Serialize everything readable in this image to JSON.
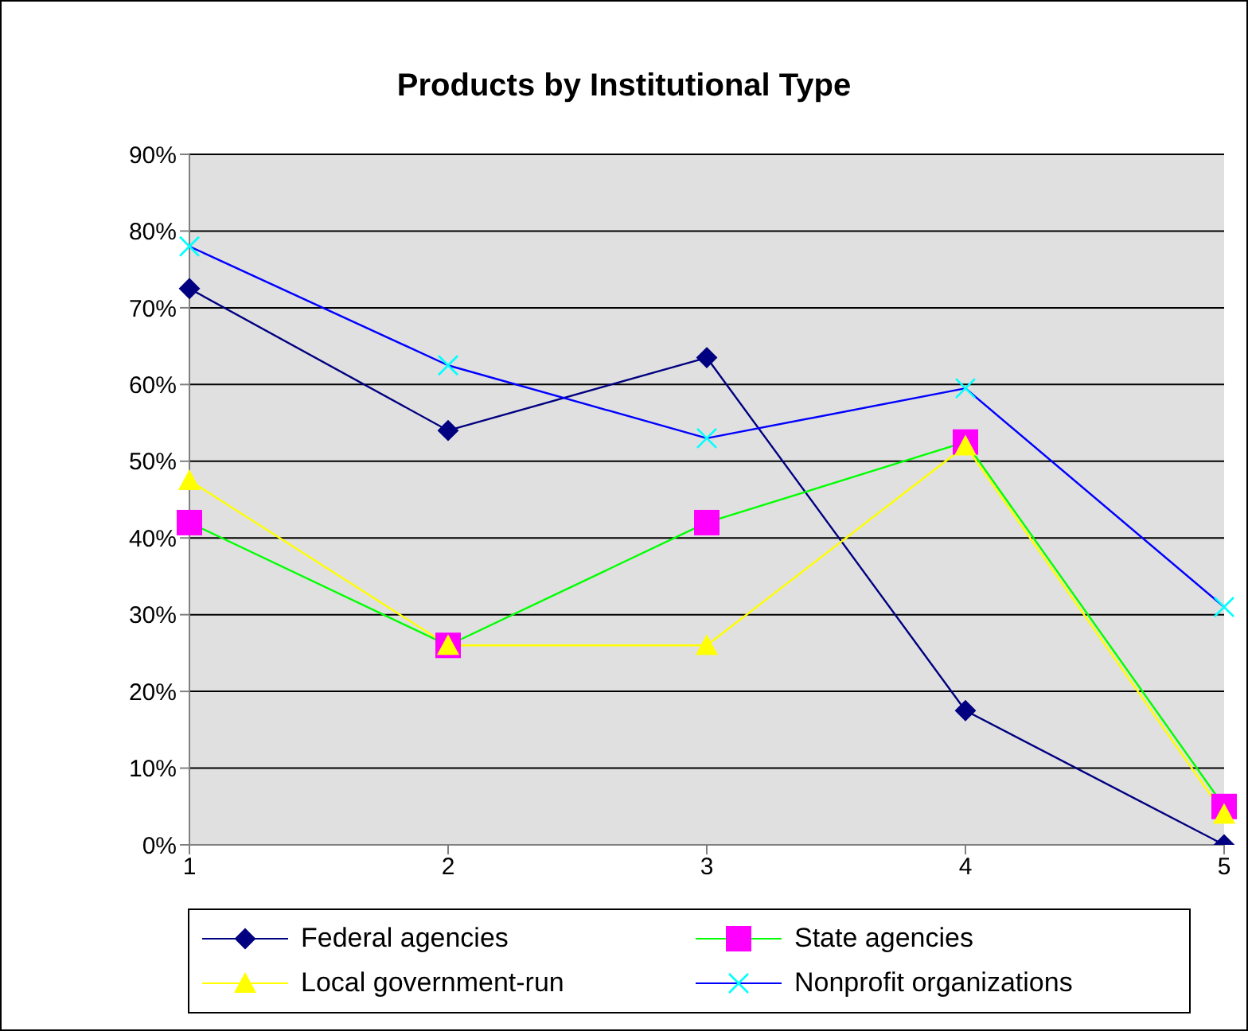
{
  "chart_data": {
    "type": "line",
    "title": "Products by Institutional Type",
    "categories": [
      "1",
      "2",
      "3",
      "4",
      "5"
    ],
    "series": [
      {
        "name": "Federal agencies",
        "color": "#000080",
        "colors": [
          "#000080",
          "#000080",
          "#000080",
          "#000080",
          "#000080"
        ],
        "marker": "diamond",
        "values": [
          72.5,
          54,
          63.5,
          17.5,
          0
        ]
      },
      {
        "name": "State agencies",
        "color": "#00ff00",
        "colors": [
          "#ff00ff",
          "#ff00ff",
          "#ff00ff",
          "#ff00ff",
          "#ff00ff"
        ],
        "marker": "square",
        "values": [
          42,
          26,
          42,
          52.5,
          5
        ]
      },
      {
        "name": "Local government-run",
        "color": "#ffff00",
        "colors": [
          "#ffff00",
          "#ffff00",
          "#ffff00",
          "#ffff00",
          "#ffff00"
        ],
        "marker": "triangle",
        "values": [
          47.5,
          26,
          26,
          52,
          4
        ]
      },
      {
        "name": "Nonprofit organizations",
        "color": "#0000ff",
        "colors": [
          "#00ffff",
          "#00ffff",
          "#00ffff",
          "#00ffff",
          "#00ffff"
        ],
        "marker": "cross",
        "values": [
          78,
          62.5,
          53,
          59.5,
          31
        ]
      }
    ],
    "ylim": [
      0,
      90
    ],
    "yticks": [
      {
        "value": 0,
        "label": "0%"
      },
      {
        "value": 10,
        "label": "10%"
      },
      {
        "value": 20,
        "label": "20%"
      },
      {
        "value": 30,
        "label": "30%"
      },
      {
        "value": 40,
        "label": "40%"
      },
      {
        "value": 50,
        "label": "50%"
      },
      {
        "value": 60,
        "label": "60%"
      },
      {
        "value": 70,
        "label": "70%"
      },
      {
        "value": 80,
        "label": "80%"
      },
      {
        "value": 90,
        "label": "90%"
      }
    ],
    "grid": "y",
    "legend": "bottom",
    "line_style": "solid"
  }
}
